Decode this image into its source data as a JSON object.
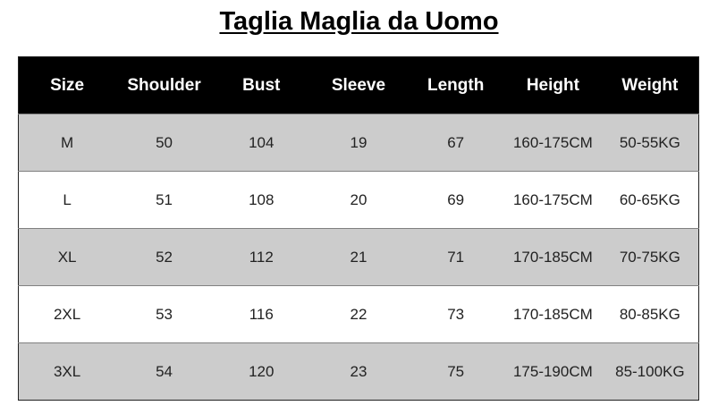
{
  "title": "Taglia Maglia da Uomo",
  "table": {
    "headers": [
      "Size",
      "Shoulder",
      "Bust",
      "Sleeve",
      "Length",
      "Height",
      "Weight"
    ],
    "rows": [
      [
        "M",
        "50",
        "104",
        "19",
        "67",
        "160-175CM",
        "50-55KG"
      ],
      [
        "L",
        "51",
        "108",
        "20",
        "69",
        "160-175CM",
        "60-65KG"
      ],
      [
        "XL",
        "52",
        "112",
        "21",
        "71",
        "170-185CM",
        "70-75KG"
      ],
      [
        "2XL",
        "53",
        "116",
        "22",
        "73",
        "170-185CM",
        "80-85KG"
      ],
      [
        "3XL",
        "54",
        "120",
        "23",
        "75",
        "175-190CM",
        "85-100KG"
      ]
    ]
  },
  "colors": {
    "header_bg": "#000000",
    "stripe_bg": "#cccccc",
    "row_bg": "#ffffff"
  }
}
